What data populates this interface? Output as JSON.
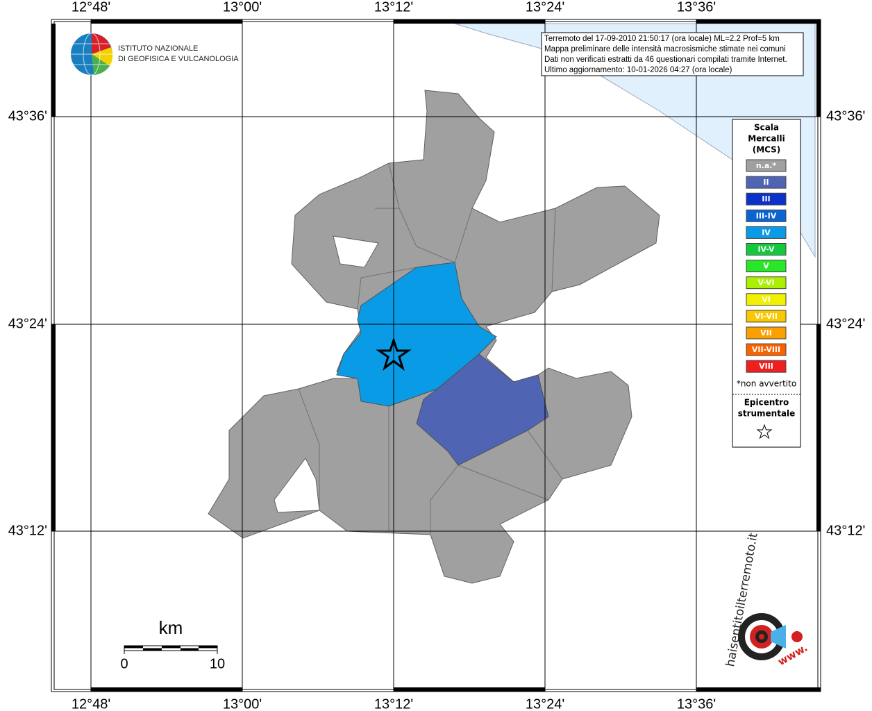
{
  "map": {
    "lon_labels": [
      "12°48'",
      "13°00'",
      "13°12'",
      "13°24'",
      "13°36'"
    ],
    "lat_labels": [
      "43°36'",
      "43°24'",
      "43°12'"
    ],
    "logo": {
      "line1": "ISTITUTO NAZIONALE",
      "line2": "DI GEOFISICA E VULCANOLOGIA"
    },
    "info": [
      "Terremoto del 17-09-2010 21:50:17 (ora locale) ML=2.2 Prof=5 km",
      "Mappa preliminare delle intensità macrosismiche stimate nei comuni",
      "Dati non verificati estratti da 46 questionari compilati tramite Internet.",
      "Ultimo aggiornamento: 10-01-2026 04:27 (ora locale)"
    ],
    "legend": {
      "title": [
        "Scala",
        "Mercalli",
        "(MCS)"
      ],
      "items": [
        {
          "label": "n.a.*",
          "color": "#a0a0a0"
        },
        {
          "label": "II",
          "color": "#5064b4"
        },
        {
          "label": "III",
          "color": "#0a32c8"
        },
        {
          "label": "III-IV",
          "color": "#0a64d2"
        },
        {
          "label": "IV",
          "color": "#0a9be6"
        },
        {
          "label": "IV-V",
          "color": "#14c83c"
        },
        {
          "label": "V",
          "color": "#28e628"
        },
        {
          "label": "V-VI",
          "color": "#aaf000"
        },
        {
          "label": "VI",
          "color": "#f0f000"
        },
        {
          "label": "VI-VII",
          "color": "#fac800"
        },
        {
          "label": "VII",
          "color": "#faa000"
        },
        {
          "label": "VII-VIII",
          "color": "#fa6400"
        },
        {
          "label": "VIII",
          "color": "#f01e1e"
        }
      ],
      "note": "*non avvertito",
      "epicenter": [
        "Epicentro",
        "strumentale"
      ]
    },
    "scale": {
      "unit": "km",
      "start": "0",
      "end": "10"
    },
    "site_logo": {
      "name": "haisentitoilterremoto.it",
      "prefix": "www."
    }
  }
}
